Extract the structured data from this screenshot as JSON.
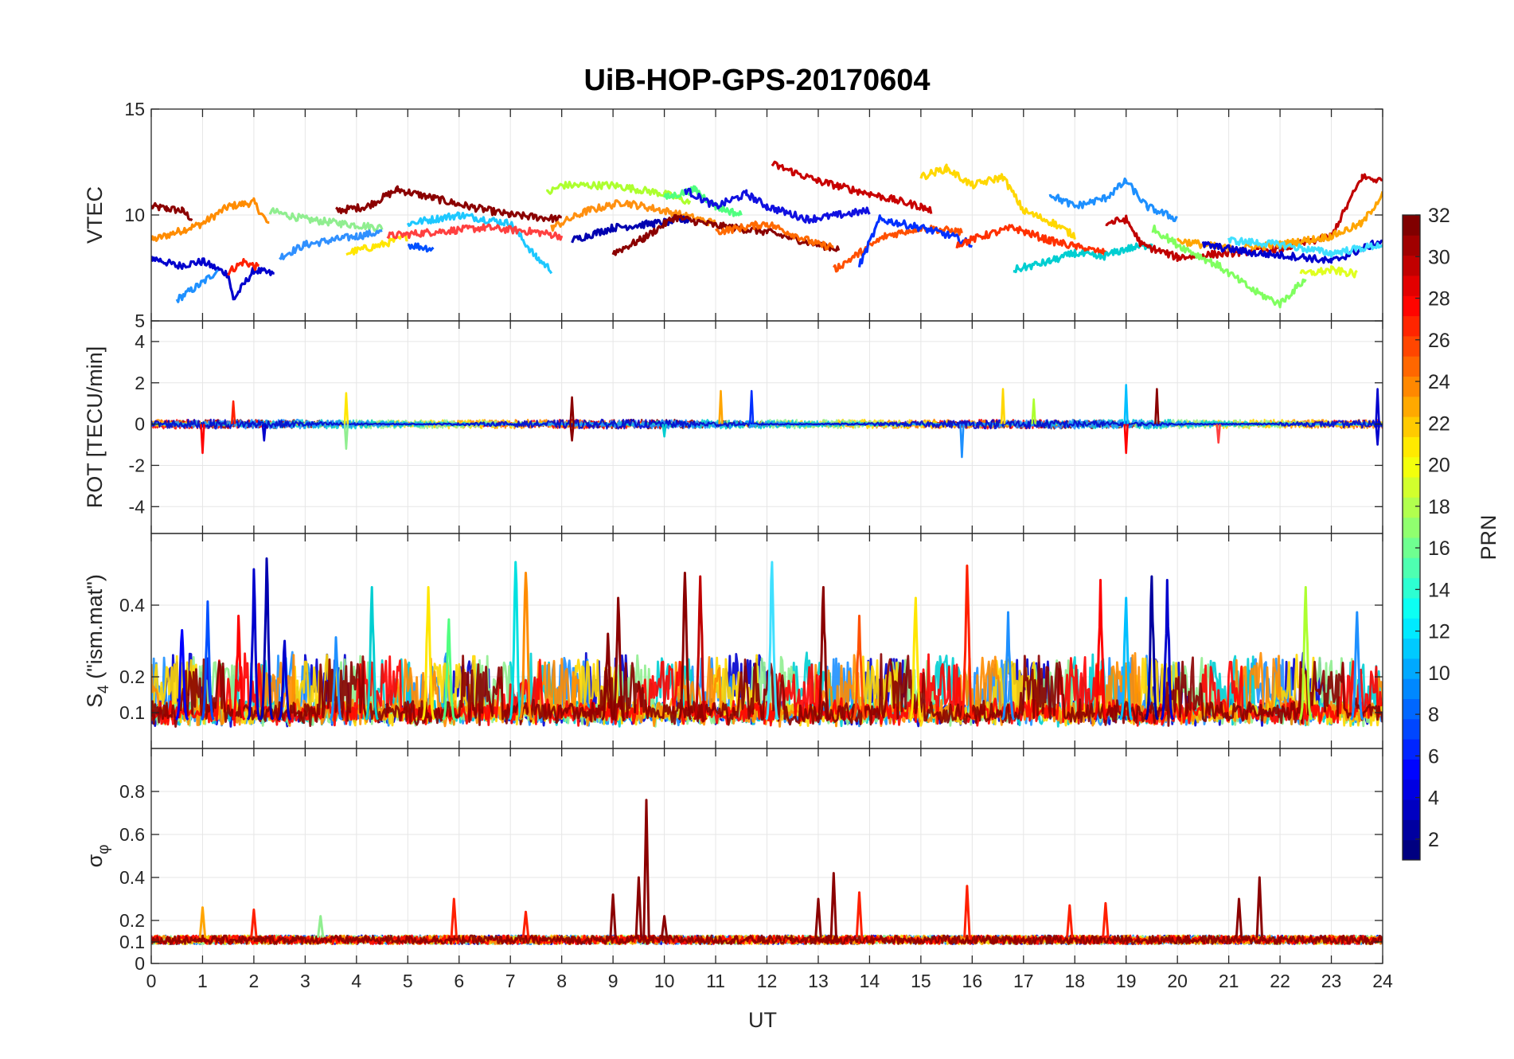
{
  "figure": {
    "title": "UiB-HOP-GPS-20170604",
    "xlabel": "UT"
  },
  "chart_data": [
    {
      "type": "line",
      "panel": "vtec",
      "ylabel": "VTEC",
      "ylim": [
        5,
        15
      ],
      "yticks": [
        5,
        10,
        15
      ],
      "xlim": [
        0,
        24
      ],
      "grid": true,
      "series": [
        {
          "color": "#8b0000",
          "x": [
            0,
            0.3,
            0.6,
            0.8
          ],
          "y": [
            10.4,
            10.3,
            10.2,
            9.8
          ]
        },
        {
          "color": "#ff8c00",
          "x": [
            0,
            0.5,
            1.0,
            1.5,
            2.0,
            2.3
          ],
          "y": [
            8.8,
            9.2,
            9.6,
            10.4,
            10.6,
            9.5
          ]
        },
        {
          "color": "#0000cd",
          "x": [
            0,
            0.5,
            1.0,
            1.5,
            1.6,
            2.0,
            2.4
          ],
          "y": [
            8.0,
            7.6,
            7.8,
            7.2,
            6.0,
            7.4,
            7.2
          ]
        },
        {
          "color": "#1e90ff",
          "x": [
            0.5,
            1.0,
            1.3
          ],
          "y": [
            6.0,
            6.8,
            7.4
          ]
        },
        {
          "color": "#ff2000",
          "x": [
            1.5,
            1.8,
            2.1
          ],
          "y": [
            7.3,
            7.8,
            7.5
          ]
        },
        {
          "color": "#90ee90",
          "x": [
            2.3,
            3.0,
            3.7,
            4.5
          ],
          "y": [
            10.2,
            9.8,
            9.6,
            9.4
          ]
        },
        {
          "color": "#3090ff",
          "x": [
            2.5,
            3.0,
            3.5,
            4.0,
            4.5
          ],
          "y": [
            8.0,
            8.6,
            8.8,
            9.0,
            9.2
          ]
        },
        {
          "color": "#8b0000",
          "x": [
            3.6,
            4.2,
            4.8,
            5.5,
            6.0,
            7.0,
            8.0
          ],
          "y": [
            10.2,
            10.4,
            11.2,
            10.8,
            10.5,
            10.0,
            9.8
          ]
        },
        {
          "color": "#ffe600",
          "x": [
            3.8,
            4.5,
            5.0
          ],
          "y": [
            8.2,
            8.6,
            9.0
          ]
        },
        {
          "color": "#0050ff",
          "x": [
            5.0,
            5.5
          ],
          "y": [
            8.6,
            8.4
          ]
        },
        {
          "color": "#1ec8ff",
          "x": [
            5.0,
            6.0,
            7.0,
            7.5,
            7.8
          ],
          "y": [
            9.6,
            10.0,
            9.6,
            8.0,
            7.4
          ]
        },
        {
          "color": "#ff4040",
          "x": [
            4.6,
            5.5,
            6.5,
            7.5,
            8.0
          ],
          "y": [
            9.0,
            9.2,
            9.4,
            9.2,
            9.0
          ]
        },
        {
          "color": "#adff2f",
          "x": [
            7.7,
            8.0,
            9.0,
            10.0,
            10.5
          ],
          "y": [
            11.0,
            11.4,
            11.4,
            11.0,
            10.6
          ]
        },
        {
          "color": "#ff9010",
          "x": [
            7.8,
            8.5,
            9.2,
            10.0,
            11.0
          ],
          "y": [
            9.4,
            10.2,
            10.6,
            10.2,
            9.6
          ]
        },
        {
          "color": "#0000b0",
          "x": [
            8.2,
            9.0,
            9.8,
            10.5
          ],
          "y": [
            8.8,
            9.4,
            9.6,
            9.8
          ]
        },
        {
          "color": "#8b0000",
          "x": [
            9.0,
            9.6,
            10.2,
            11.0,
            12.0,
            13.0,
            13.4
          ],
          "y": [
            8.2,
            8.9,
            9.9,
            9.5,
            9.2,
            8.6,
            8.4
          ]
        },
        {
          "color": "#50ff80",
          "x": [
            10.0,
            10.6,
            11.0,
            11.5
          ],
          "y": [
            10.8,
            11.2,
            10.4,
            10.0
          ]
        },
        {
          "color": "#1010e0",
          "x": [
            10.4,
            11.0,
            11.6,
            12.0,
            12.8,
            13.4,
            14.0
          ],
          "y": [
            11.2,
            10.4,
            11.0,
            10.4,
            9.8,
            10.0,
            10.2
          ]
        },
        {
          "color": "#ff6a00",
          "x": [
            11.0,
            12.0,
            13.0,
            13.3
          ],
          "y": [
            9.2,
            9.6,
            8.6,
            8.5
          ]
        },
        {
          "color": "#c80000",
          "x": [
            12.1,
            13.0,
            14.0,
            15.0,
            15.2
          ],
          "y": [
            12.4,
            11.6,
            11.0,
            10.4,
            10.2
          ]
        },
        {
          "color": "#ff5000",
          "x": [
            13.3,
            13.8,
            14.3,
            15.0,
            15.8
          ],
          "y": [
            7.4,
            8.2,
            9.0,
            9.4,
            9.2
          ]
        },
        {
          "color": "#0030ff",
          "x": [
            13.8,
            14.2,
            15.0,
            15.6,
            16.0
          ],
          "y": [
            7.6,
            9.8,
            9.4,
            9.0,
            8.6
          ]
        },
        {
          "color": "#ffd700",
          "x": [
            15.0,
            15.5,
            16.0,
            16.6,
            17.0,
            17.6,
            18.0
          ],
          "y": [
            11.8,
            12.2,
            11.4,
            11.8,
            10.2,
            9.6,
            9.0
          ]
        },
        {
          "color": "#ff3000",
          "x": [
            15.7,
            16.2,
            16.8,
            17.5,
            18.2,
            18.6
          ],
          "y": [
            8.6,
            9.0,
            9.4,
            8.8,
            8.4,
            8.2
          ]
        },
        {
          "color": "#00ced1",
          "x": [
            16.8,
            17.5,
            18.0,
            18.5,
            19.0,
            19.5
          ],
          "y": [
            7.4,
            7.8,
            8.2,
            8.0,
            8.4,
            8.6
          ]
        },
        {
          "color": "#1e90ff",
          "x": [
            17.5,
            18.0,
            18.6,
            19.0,
            19.4,
            20.0
          ],
          "y": [
            11.0,
            10.4,
            10.8,
            11.6,
            10.4,
            9.8
          ]
        },
        {
          "color": "#c00000",
          "x": [
            18.6,
            19.0,
            19.3,
            20.0,
            21.0,
            22.0,
            23.0,
            23.6,
            24.0
          ],
          "y": [
            9.6,
            9.8,
            8.6,
            8.0,
            8.2,
            8.4,
            9.0,
            11.8,
            11.6
          ]
        },
        {
          "color": "#80ff60",
          "x": [
            19.5,
            20.0,
            20.8,
            21.5,
            22.0,
            22.5
          ],
          "y": [
            9.4,
            8.6,
            7.6,
            6.4,
            5.8,
            7.0
          ]
        },
        {
          "color": "#ffa500",
          "x": [
            20.0,
            21.0,
            22.0,
            23.0,
            23.6,
            24.0
          ],
          "y": [
            8.8,
            8.4,
            8.6,
            9.0,
            9.6,
            11.0
          ]
        },
        {
          "color": "#0000cd",
          "x": [
            20.5,
            21.5,
            22.5,
            23.0,
            23.6,
            24.0
          ],
          "y": [
            8.6,
            8.2,
            8.0,
            7.8,
            8.4,
            8.8
          ]
        },
        {
          "color": "#40e0ff",
          "x": [
            21.0,
            22.0,
            23.0,
            24.0
          ],
          "y": [
            8.8,
            8.6,
            8.2,
            8.6
          ]
        },
        {
          "color": "#e0ff20",
          "x": [
            22.4,
            23.0,
            23.5
          ],
          "y": [
            7.2,
            7.4,
            7.2
          ]
        }
      ]
    },
    {
      "type": "line",
      "panel": "rot",
      "ylabel": "ROT [TECU/min]",
      "ylim": [
        -5.3,
        5
      ],
      "yticks": [
        -4,
        -2,
        0,
        2,
        4
      ],
      "xlim": [
        0,
        24
      ],
      "grid": true,
      "spikes": [
        {
          "x": 1.0,
          "y": -1.4,
          "color": "#ff0000"
        },
        {
          "x": 1.6,
          "y": 1.1,
          "color": "#ff2000"
        },
        {
          "x": 2.2,
          "y": -0.8,
          "color": "#0000cd"
        },
        {
          "x": 3.8,
          "y": 1.5,
          "color": "#ffe600"
        },
        {
          "x": 3.8,
          "y": -1.2,
          "color": "#90ee90"
        },
        {
          "x": 8.2,
          "y": 1.3,
          "color": "#8b0000"
        },
        {
          "x": 8.2,
          "y": -0.8,
          "color": "#8b0000"
        },
        {
          "x": 10.0,
          "y": -0.6,
          "color": "#00ced1"
        },
        {
          "x": 11.1,
          "y": 1.6,
          "color": "#ffa500"
        },
        {
          "x": 11.7,
          "y": 1.6,
          "color": "#0030ff"
        },
        {
          "x": 15.8,
          "y": -1.6,
          "color": "#1e90ff"
        },
        {
          "x": 16.6,
          "y": 1.7,
          "color": "#ffd700"
        },
        {
          "x": 17.2,
          "y": 1.2,
          "color": "#adff2f"
        },
        {
          "x": 19.0,
          "y": 1.9,
          "color": "#00bfff"
        },
        {
          "x": 19.0,
          "y": -1.4,
          "color": "#ff0000"
        },
        {
          "x": 19.6,
          "y": 1.7,
          "color": "#8b0000"
        },
        {
          "x": 20.8,
          "y": -0.9,
          "color": "#ff4040"
        },
        {
          "x": 23.9,
          "y": 1.7,
          "color": "#0000cd"
        },
        {
          "x": 23.9,
          "y": -1.0,
          "color": "#0000cd"
        }
      ]
    },
    {
      "type": "line",
      "panel": "s4",
      "ylabel": "S4 (\"ism.mat\")",
      "ylabel_main": "S",
      "ylabel_sub": "4",
      "ylabel_rest": " (\"ism.mat\")",
      "ylim": [
        0,
        0.6
      ],
      "yticks": [
        0.1,
        0.2,
        0.4
      ],
      "xlim": [
        0,
        24
      ],
      "grid": true,
      "peaks": [
        {
          "x": 0.6,
          "y": 0.33,
          "color": "#0000ff"
        },
        {
          "x": 1.1,
          "y": 0.41,
          "color": "#0050ff"
        },
        {
          "x": 1.7,
          "y": 0.37,
          "color": "#ff0000"
        },
        {
          "x": 2.0,
          "y": 0.5,
          "color": "#0000cd"
        },
        {
          "x": 2.25,
          "y": 0.53,
          "color": "#0000b0"
        },
        {
          "x": 2.6,
          "y": 0.3,
          "color": "#0000cd"
        },
        {
          "x": 3.6,
          "y": 0.31,
          "color": "#1e90ff"
        },
        {
          "x": 4.3,
          "y": 0.45,
          "color": "#00ced1"
        },
        {
          "x": 5.4,
          "y": 0.45,
          "color": "#ffe600"
        },
        {
          "x": 5.8,
          "y": 0.36,
          "color": "#50ff80"
        },
        {
          "x": 7.1,
          "y": 0.52,
          "color": "#00e0e0"
        },
        {
          "x": 7.3,
          "y": 0.49,
          "color": "#ff8c00"
        },
        {
          "x": 8.9,
          "y": 0.32,
          "color": "#8b0000"
        },
        {
          "x": 9.1,
          "y": 0.42,
          "color": "#8b0000"
        },
        {
          "x": 10.4,
          "y": 0.49,
          "color": "#8b0000"
        },
        {
          "x": 10.7,
          "y": 0.48,
          "color": "#c00000"
        },
        {
          "x": 12.1,
          "y": 0.52,
          "color": "#40e0ff"
        },
        {
          "x": 13.1,
          "y": 0.45,
          "color": "#8b0000"
        },
        {
          "x": 13.8,
          "y": 0.37,
          "color": "#ff5000"
        },
        {
          "x": 14.9,
          "y": 0.42,
          "color": "#ffe600"
        },
        {
          "x": 15.9,
          "y": 0.51,
          "color": "#ff2000"
        },
        {
          "x": 16.7,
          "y": 0.38,
          "color": "#1e90ff"
        },
        {
          "x": 18.5,
          "y": 0.47,
          "color": "#ff0000"
        },
        {
          "x": 19.0,
          "y": 0.42,
          "color": "#00bfff"
        },
        {
          "x": 19.5,
          "y": 0.48,
          "color": "#0000a0"
        },
        {
          "x": 19.8,
          "y": 0.47,
          "color": "#0000cd"
        },
        {
          "x": 22.5,
          "y": 0.45,
          "color": "#adff2f"
        },
        {
          "x": 23.5,
          "y": 0.38,
          "color": "#1e90ff"
        }
      ]
    },
    {
      "type": "line",
      "panel": "sigma",
      "ylabel": "σφ",
      "ylabel_main": "σ",
      "ylabel_sub": "φ",
      "ylim": [
        0,
        1
      ],
      "yticks": [
        0,
        0.1,
        0.2,
        0.4,
        0.6,
        0.8
      ],
      "xlim": [
        0,
        24
      ],
      "grid": true,
      "peaks": [
        {
          "x": 1.0,
          "y": 0.26,
          "color": "#ffa500"
        },
        {
          "x": 2.0,
          "y": 0.25,
          "color": "#ff2000"
        },
        {
          "x": 3.3,
          "y": 0.22,
          "color": "#90ee90"
        },
        {
          "x": 5.9,
          "y": 0.3,
          "color": "#ff2000"
        },
        {
          "x": 7.3,
          "y": 0.24,
          "color": "#ff2000"
        },
        {
          "x": 9.0,
          "y": 0.32,
          "color": "#8b0000"
        },
        {
          "x": 9.5,
          "y": 0.4,
          "color": "#8b0000"
        },
        {
          "x": 9.65,
          "y": 0.76,
          "color": "#8b0000"
        },
        {
          "x": 10.0,
          "y": 0.22,
          "color": "#8b0000"
        },
        {
          "x": 13.0,
          "y": 0.3,
          "color": "#8b0000"
        },
        {
          "x": 13.3,
          "y": 0.42,
          "color": "#8b0000"
        },
        {
          "x": 13.8,
          "y": 0.33,
          "color": "#ff2000"
        },
        {
          "x": 15.9,
          "y": 0.36,
          "color": "#ff2000"
        },
        {
          "x": 17.9,
          "y": 0.27,
          "color": "#ff2000"
        },
        {
          "x": 18.6,
          "y": 0.28,
          "color": "#ff2000"
        },
        {
          "x": 21.2,
          "y": 0.3,
          "color": "#8b0000"
        },
        {
          "x": 21.6,
          "y": 0.4,
          "color": "#8b0000"
        }
      ]
    }
  ],
  "xaxis": {
    "ticks": [
      0,
      1,
      2,
      3,
      4,
      5,
      6,
      7,
      8,
      9,
      10,
      11,
      12,
      13,
      14,
      15,
      16,
      17,
      18,
      19,
      20,
      21,
      22,
      23,
      24
    ]
  },
  "colorbar": {
    "label": "PRN",
    "range": [
      1,
      32
    ],
    "ticks": [
      2,
      4,
      6,
      8,
      10,
      12,
      14,
      16,
      18,
      20,
      22,
      24,
      26,
      28,
      30,
      32
    ],
    "colormap": "jet"
  }
}
